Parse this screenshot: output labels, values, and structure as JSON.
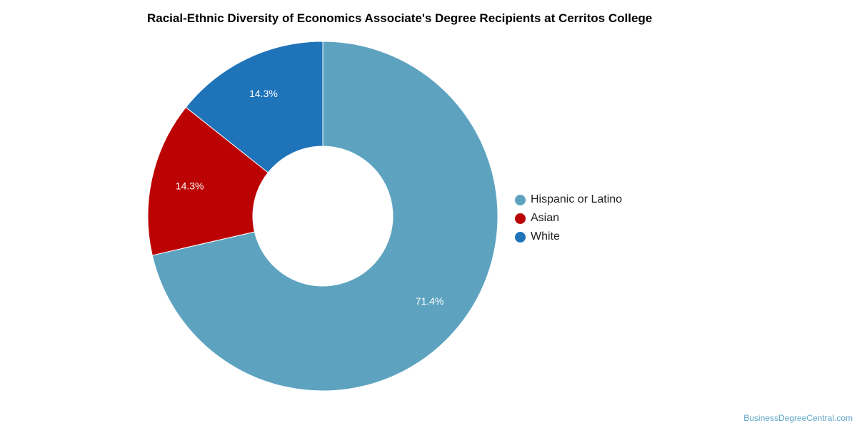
{
  "chart_data": {
    "type": "pie",
    "title": "Racial-Ethnic Diversity of Economics Associate's Degree Recipients at Cerritos College",
    "hole": true,
    "legend_position": "right",
    "slices": [
      {
        "name": "Hispanic or Latino",
        "value": 71.4,
        "label": "71.4%",
        "color": "#5da3c0"
      },
      {
        "name": "Asian",
        "value": 14.3,
        "label": "14.3%",
        "color": "#bb0303"
      },
      {
        "name": "White",
        "value": 14.3,
        "label": "14.3%",
        "color": "#1f73b9"
      }
    ]
  },
  "watermark": "BusinessDegreeCentral.com"
}
